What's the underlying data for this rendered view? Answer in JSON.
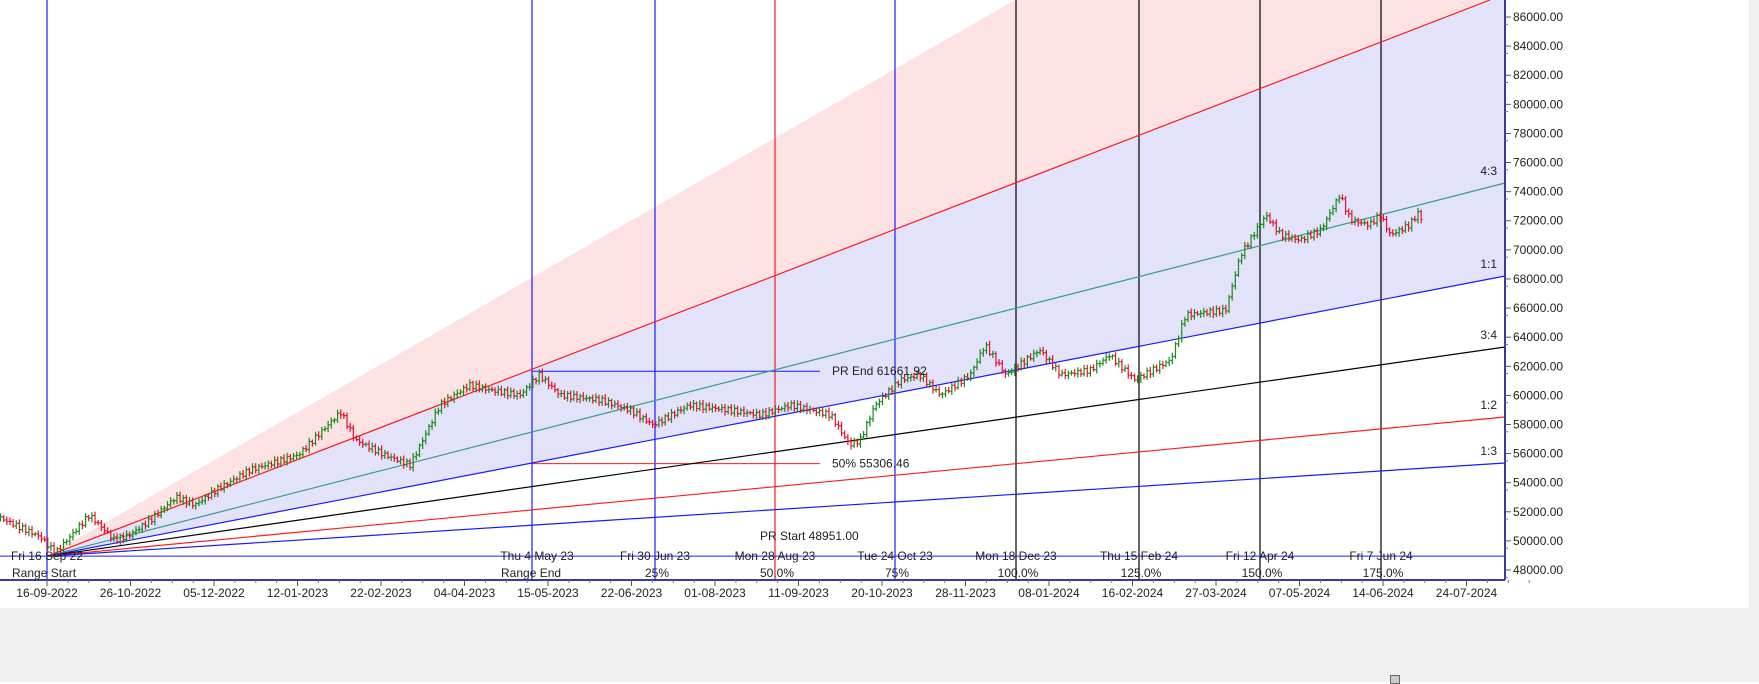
{
  "chart_data": {
    "type": "ohlc",
    "title": "",
    "ylim": [
      48000,
      86000
    ],
    "y_ticks": [
      "48000.00",
      "50000.00",
      "52000.00",
      "54000.00",
      "56000.00",
      "58000.00",
      "60000.00",
      "62000.00",
      "64000.00",
      "66000.00",
      "68000.00",
      "70000.00",
      "72000.00",
      "74000.00",
      "76000.00",
      "78000.00",
      "80000.00",
      "82000.00",
      "84000.00",
      "86000.00"
    ],
    "x_ticks": [
      "16-09-2022",
      "26-10-2022",
      "05-12-2022",
      "12-01-2023",
      "22-02-2023",
      "04-04-2023",
      "15-05-2023",
      "22-06-2023",
      "01-08-2023",
      "11-09-2023",
      "20-10-2023",
      "28-11-2023",
      "08-01-2024",
      "16-02-2024",
      "27-03-2024",
      "07-05-2024",
      "14-06-2024",
      "24-07-2024"
    ],
    "colors": {
      "up": "#1a8a1a",
      "down": "#e8102a",
      "blue_line": "#1a1aff",
      "red_line": "#ff1a1a",
      "black_line": "#000000",
      "teal_line": "#3a9a8a",
      "blue_zone": "#e2e2fa",
      "pink_zone": "#fde2e4",
      "axis": "#3a3a9a"
    },
    "price_path": [
      [
        "2022-08-25",
        51570
      ],
      [
        "2022-09-13",
        50260
      ],
      [
        "2022-09-20",
        49160
      ],
      [
        "2022-10-06",
        51770
      ],
      [
        "2022-10-18",
        50060
      ],
      [
        "2022-10-25",
        50400
      ],
      [
        "2022-11-04",
        51430
      ],
      [
        "2022-11-16",
        53010
      ],
      [
        "2022-11-25",
        52460
      ],
      [
        "2022-12-05",
        53490
      ],
      [
        "2022-12-21",
        54870
      ],
      [
        "2023-01-13",
        55900
      ],
      [
        "2023-02-02",
        58850
      ],
      [
        "2023-02-09",
        56930
      ],
      [
        "2023-02-23",
        55900
      ],
      [
        "2023-03-07",
        55210
      ],
      [
        "2023-03-14",
        57270
      ],
      [
        "2023-03-21",
        59330
      ],
      [
        "2023-04-04",
        60710
      ],
      [
        "2023-04-14",
        60360
      ],
      [
        "2023-04-28",
        60020
      ],
      [
        "2023-05-07",
        61400
      ],
      [
        "2023-05-17",
        60020
      ],
      [
        "2023-06-05",
        59680
      ],
      [
        "2023-06-19",
        58990
      ],
      [
        "2023-06-30",
        57960
      ],
      [
        "2023-07-17",
        59330
      ],
      [
        "2023-08-05",
        58990
      ],
      [
        "2023-08-20",
        58650
      ],
      [
        "2023-09-03",
        59330
      ],
      [
        "2023-09-22",
        58650
      ],
      [
        "2023-10-01",
        56590
      ],
      [
        "2023-10-06",
        56930
      ],
      [
        "2023-10-13",
        59330
      ],
      [
        "2023-10-25",
        61050
      ],
      [
        "2023-11-03",
        61400
      ],
      [
        "2023-11-13",
        60020
      ],
      [
        "2023-11-27",
        61400
      ],
      [
        "2023-12-04",
        63460
      ],
      [
        "2023-12-14",
        61400
      ],
      [
        "2023-12-30",
        63120
      ],
      [
        "2024-01-09",
        61400
      ],
      [
        "2024-01-23",
        61740
      ],
      [
        "2024-02-01",
        62770
      ],
      [
        "2024-02-13",
        61050
      ],
      [
        "2024-03-01",
        62430
      ],
      [
        "2024-03-08",
        65520
      ],
      [
        "2024-03-27",
        65860
      ],
      [
        "2024-04-03",
        69640
      ],
      [
        "2024-04-15",
        72390
      ],
      [
        "2024-04-22",
        71020
      ],
      [
        "2024-05-01",
        70670
      ],
      [
        "2024-05-11",
        71360
      ],
      [
        "2024-05-20",
        73770
      ],
      [
        "2024-05-25",
        72050
      ],
      [
        "2024-06-03",
        71710
      ],
      [
        "2024-06-08",
        72390
      ],
      [
        "2024-06-13",
        71020
      ],
      [
        "2024-06-22",
        71710
      ],
      [
        "2024-06-27",
        72700
      ],
      [
        "2024-06-28",
        71700
      ]
    ],
    "price_range": {
      "start_label": "Fri 16 Sep 22",
      "start_caption": "Range Start",
      "end_label": "Thu 4 May 23",
      "end_caption": "Range End",
      "pr_end_label": "PR End 61661.92",
      "pr_end_value": 61661.92,
      "mid_label": "50% 55306.46",
      "mid_value": 55306.46,
      "pr_start_label": "PR Start 48951.00",
      "pr_start_value": 48951.0
    },
    "time_cycles": [
      {
        "date_label": "Fri 30 Jun 23",
        "pct": "25%",
        "color": "blue"
      },
      {
        "date_label": "Mon 28 Aug 23",
        "pct": "50.0%",
        "color": "red"
      },
      {
        "date_label": "Tue 24 Oct 23",
        "pct": "75%",
        "color": "blue"
      },
      {
        "date_label": "Mon 18 Dec 23",
        "pct": "100.0%",
        "color": "black"
      },
      {
        "date_label": "Thu 15 Feb 24",
        "pct": "125.0%",
        "color": "black"
      },
      {
        "date_label": "Fri 12 Apr 24",
        "pct": "150.0%",
        "color": "black"
      },
      {
        "date_label": "Fri 7 Jun 24",
        "pct": "175.0%",
        "color": "black"
      }
    ],
    "gann_fan": [
      {
        "ratio": "",
        "color": "red"
      },
      {
        "ratio": "4:3",
        "color": "teal"
      },
      {
        "ratio": "1:1",
        "color": "blue"
      },
      {
        "ratio": "3:4",
        "color": "black"
      },
      {
        "ratio": "1:2",
        "color": "red"
      },
      {
        "ratio": "1:3",
        "color": "blue"
      }
    ]
  }
}
